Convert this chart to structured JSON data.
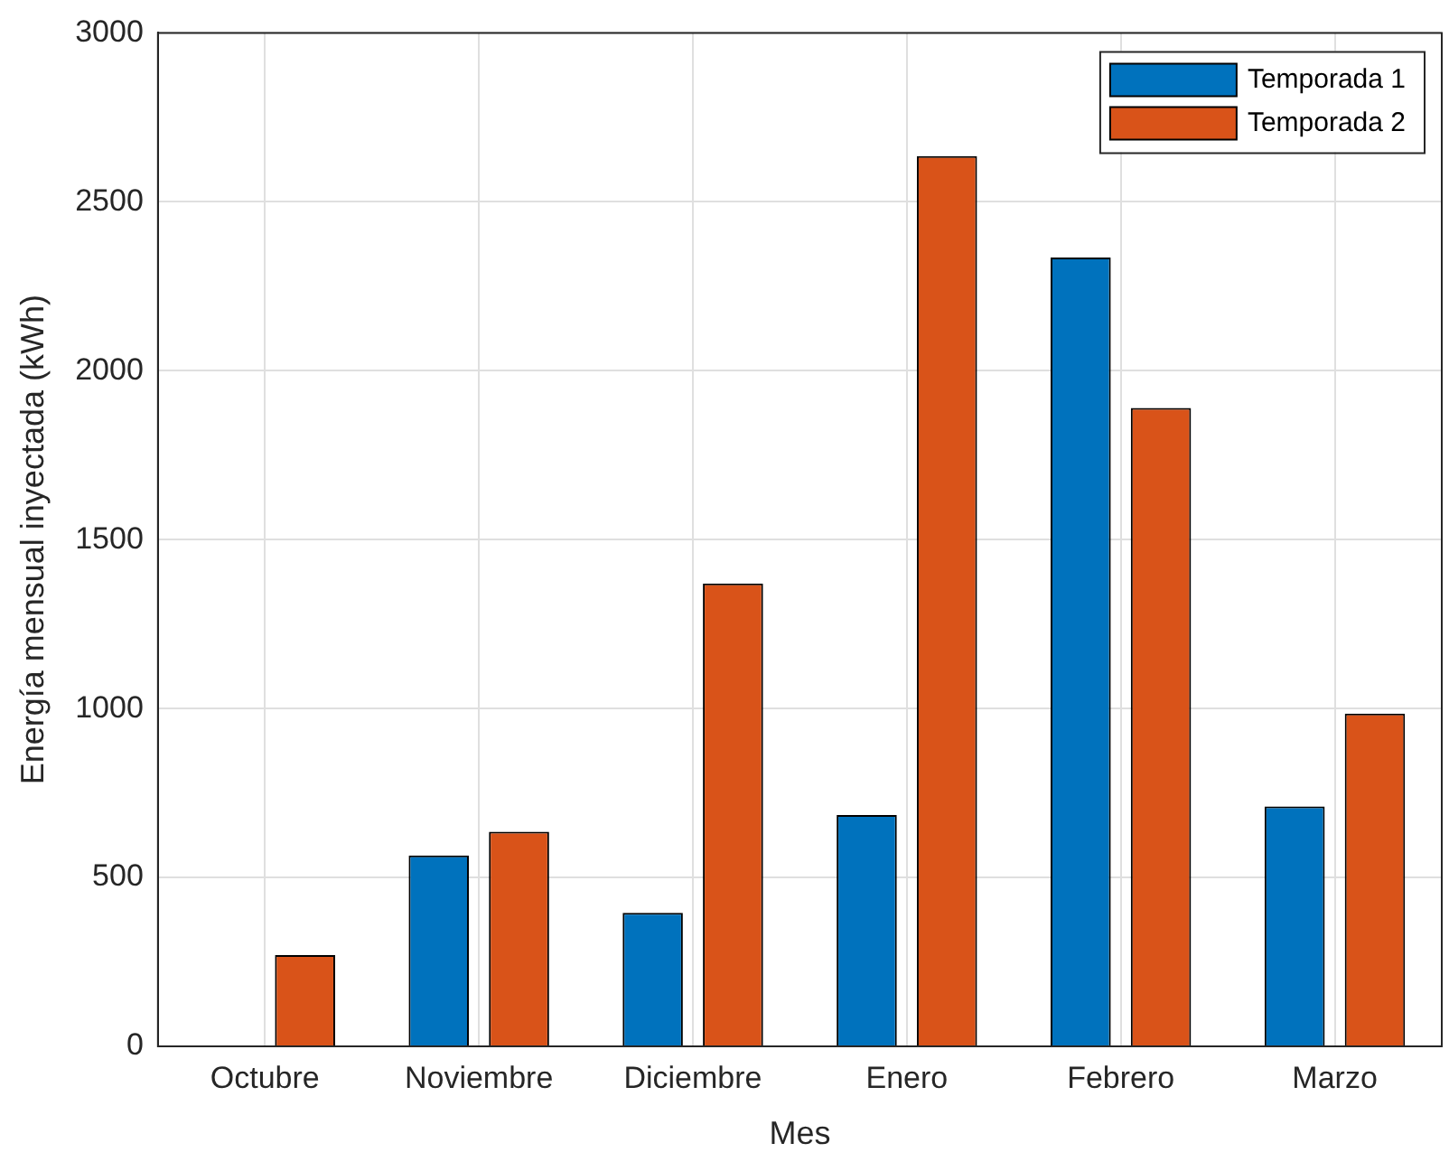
{
  "chart_data": {
    "type": "bar",
    "xlabel": "Mes",
    "ylabel": "Energía mensual inyectada (kWh)",
    "categories": [
      "Octubre",
      "Noviembre",
      "Diciembre",
      "Enero",
      "Febrero",
      "Marzo"
    ],
    "series": [
      {
        "name": "Temporada 1",
        "color": "#0072bd",
        "values": [
          0,
          565,
          395,
          685,
          2335,
          710
        ]
      },
      {
        "name": "Temporada 2",
        "color": "#d95319",
        "values": [
          270,
          635,
          1370,
          2635,
          1890,
          985
        ]
      }
    ],
    "ylim": [
      0,
      3000
    ],
    "yticks": [
      0,
      500,
      1000,
      1500,
      2000,
      2500,
      3000
    ],
    "grid": true,
    "legend": "top right"
  }
}
